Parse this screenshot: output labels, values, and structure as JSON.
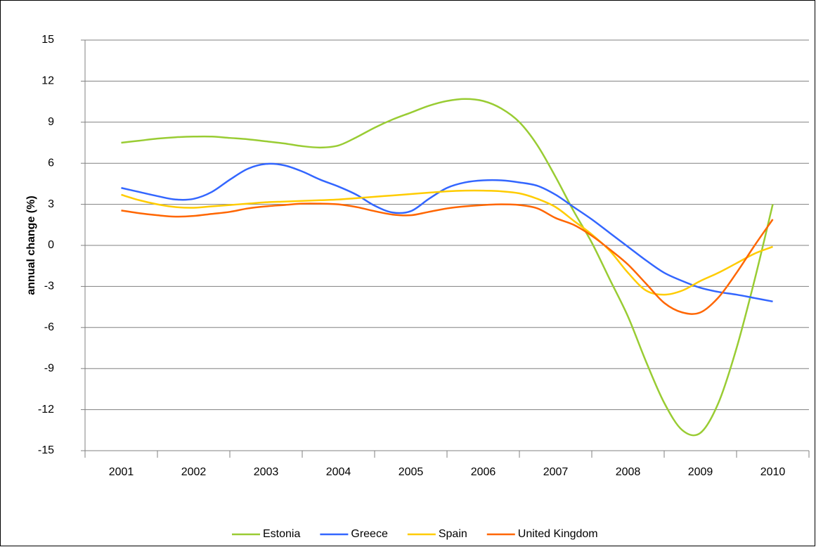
{
  "chart_data": {
    "type": "line",
    "y_label": "annual change (%)",
    "categories": [
      "2001",
      null,
      null,
      null,
      "2002",
      null,
      null,
      null,
      "2003",
      null,
      null,
      null,
      "2004",
      null,
      null,
      null,
      "2005",
      null,
      null,
      null,
      "2006",
      null,
      null,
      null,
      "2007",
      null,
      null,
      null,
      "2008",
      null,
      null,
      null,
      "2009",
      null,
      null,
      null,
      "2010"
    ],
    "series": [
      {
        "name": "Estonia",
        "color": "#99cc33",
        "values": [
          7.5,
          7.65,
          7.8,
          7.9,
          7.95,
          7.95,
          7.85,
          7.75,
          7.6,
          7.45,
          7.25,
          7.15,
          7.3,
          7.9,
          8.6,
          9.2,
          9.7,
          10.2,
          10.55,
          10.7,
          10.55,
          10.0,
          9.0,
          7.3,
          5.0,
          2.5,
          0.2,
          -2.5,
          -5.2,
          -8.5,
          -11.5,
          -13.5,
          -13.7,
          -11.5,
          -7.5,
          -2.5,
          3.0
        ]
      },
      {
        "name": "Greece",
        "color": "#3366ff",
        "values": [
          4.2,
          3.9,
          3.6,
          3.35,
          3.4,
          3.9,
          4.8,
          5.6,
          5.95,
          5.85,
          5.4,
          4.8,
          4.3,
          3.7,
          2.9,
          2.4,
          2.5,
          3.4,
          4.2,
          4.6,
          4.75,
          4.75,
          4.6,
          4.35,
          3.7,
          2.8,
          1.9,
          0.9,
          -0.1,
          -1.1,
          -2.0,
          -2.6,
          -3.1,
          -3.4,
          -3.6,
          -3.85,
          -4.1
        ]
      },
      {
        "name": "Spain",
        "color": "#ffcc00",
        "values": [
          3.7,
          3.3,
          3.0,
          2.8,
          2.75,
          2.85,
          2.95,
          3.05,
          3.15,
          3.2,
          3.25,
          3.3,
          3.35,
          3.45,
          3.55,
          3.65,
          3.75,
          3.85,
          3.95,
          4.0,
          4.0,
          3.95,
          3.8,
          3.4,
          2.8,
          1.8,
          0.8,
          -0.4,
          -2.0,
          -3.3,
          -3.6,
          -3.3,
          -2.6,
          -2.0,
          -1.3,
          -0.6,
          -0.1
        ]
      },
      {
        "name": "United Kingdom",
        "color": "#ff6600",
        "values": [
          2.55,
          2.35,
          2.2,
          2.1,
          2.15,
          2.3,
          2.45,
          2.7,
          2.85,
          2.95,
          3.05,
          3.05,
          3.0,
          2.8,
          2.5,
          2.25,
          2.2,
          2.45,
          2.7,
          2.85,
          2.95,
          3.0,
          2.95,
          2.7,
          2.0,
          1.5,
          0.7,
          -0.3,
          -1.4,
          -2.8,
          -4.2,
          -4.9,
          -4.9,
          -3.8,
          -2.0,
          0.0,
          1.9
        ]
      }
    ],
    "ylim": [
      -15,
      15
    ],
    "yticks": [
      -15,
      -12,
      -9,
      -6,
      -3,
      0,
      3,
      6,
      9,
      12,
      15
    ],
    "grid": true
  }
}
